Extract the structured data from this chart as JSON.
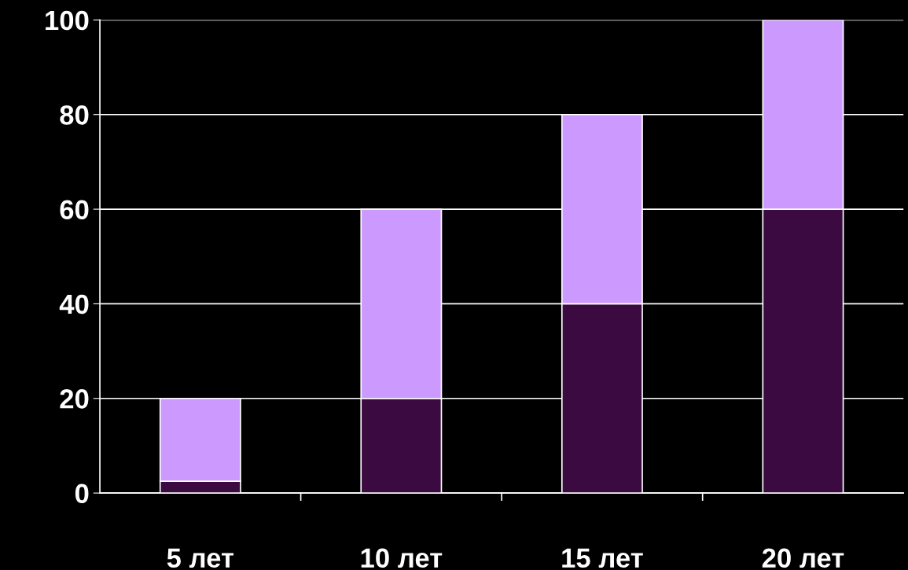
{
  "chart_data": {
    "type": "bar",
    "stacked": true,
    "categories": [
      "5 лет",
      "10 лет",
      "15 лет",
      "20 лет"
    ],
    "series": [
      {
        "color": "#3a0a40",
        "values": [
          2.5,
          20,
          40,
          60
        ]
      },
      {
        "color": "#cc99ff",
        "values": [
          17.5,
          40,
          40,
          40
        ]
      }
    ],
    "ylim": [
      0,
      100
    ],
    "yticks": [
      0,
      20,
      40,
      60,
      80,
      100
    ],
    "grid": "y",
    "legend": false
  }
}
